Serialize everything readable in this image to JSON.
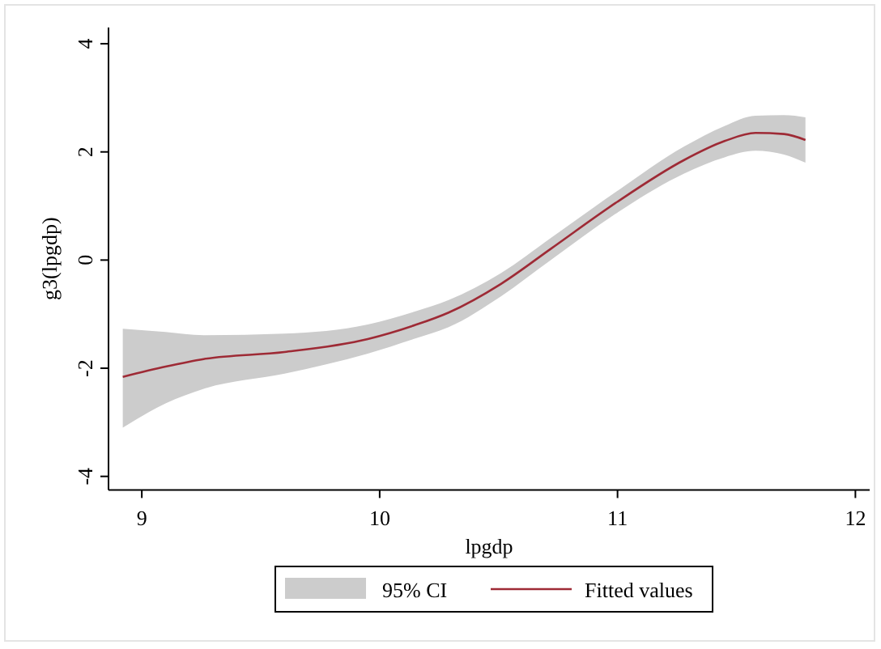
{
  "chart_data": {
    "type": "line",
    "xlabel": "lpgdp",
    "ylabel": "g3(lpgdp)",
    "x": [
      8.92,
      9.1,
      9.26,
      9.6,
      9.95,
      10.15,
      10.29,
      10.51,
      10.72,
      10.99,
      11.28,
      11.45,
      11.58,
      11.7,
      11.79
    ],
    "series": [
      {
        "name": "Fitted values",
        "color": "#9e2a35",
        "values": [
          -2.16,
          -1.97,
          -1.83,
          -1.7,
          -1.46,
          -1.2,
          -0.97,
          -0.44,
          0.21,
          1.05,
          1.85,
          2.2,
          2.35,
          2.33,
          2.22
        ],
        "lower": [
          -3.1,
          -2.65,
          -2.38,
          -2.1,
          -1.73,
          -1.45,
          -1.24,
          -0.67,
          0.0,
          0.85,
          1.6,
          1.9,
          2.02,
          1.95,
          1.8
        ],
        "upper": [
          -1.27,
          -1.33,
          -1.39,
          -1.36,
          -1.19,
          -0.95,
          -0.74,
          -0.24,
          0.41,
          1.25,
          2.1,
          2.48,
          2.67,
          2.68,
          2.64
        ]
      }
    ],
    "annotations": [
      "95% CI"
    ],
    "xlim": [
      8.86,
      12.06
    ],
    "ylim": [
      -4.25,
      4.3
    ],
    "xticks": [
      9,
      10,
      11,
      12
    ],
    "yticks": [
      -4,
      -2,
      0,
      2,
      4
    ],
    "legend": "bottom"
  }
}
